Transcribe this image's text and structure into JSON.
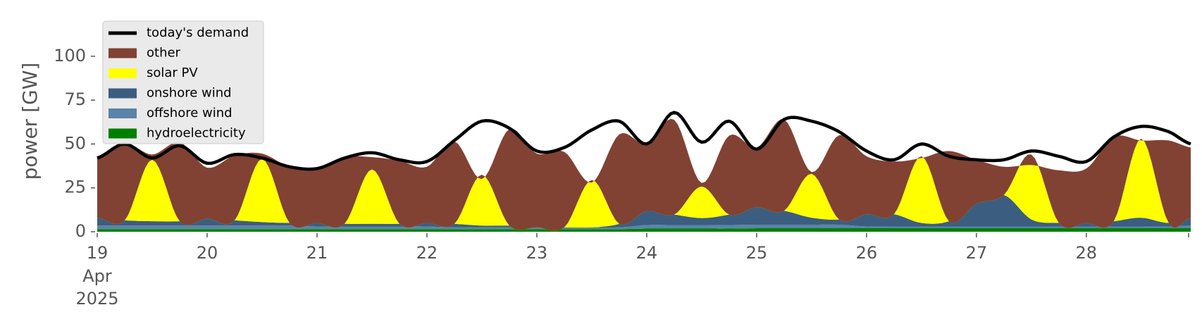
{
  "chart_data": {
    "type": "area",
    "stacked": true,
    "ylabel": "power [GW]",
    "xlabel": "",
    "title": "",
    "ylim": [
      0,
      120
    ],
    "yticks": [
      0,
      25,
      50,
      75,
      100
    ],
    "xlim": [
      0,
      9.95
    ],
    "xticks": [
      {
        "day": 0,
        "label": "19",
        "sub1": "Apr",
        "sub2": "2025"
      },
      {
        "day": 1,
        "label": "20"
      },
      {
        "day": 2,
        "label": "21"
      },
      {
        "day": 3,
        "label": "22"
      },
      {
        "day": 4,
        "label": "23"
      },
      {
        "day": 5,
        "label": "24"
      },
      {
        "day": 6,
        "label": "25"
      },
      {
        "day": 7,
        "label": "26"
      },
      {
        "day": 8,
        "label": "27"
      },
      {
        "day": 9,
        "label": "28"
      }
    ],
    "x_days": [
      0,
      0.25,
      0.5,
      0.75,
      1,
      1.25,
      1.5,
      1.75,
      2,
      2.25,
      2.5,
      2.75,
      3,
      3.25,
      3.5,
      3.75,
      4,
      4.25,
      4.5,
      4.75,
      5,
      5.25,
      5.5,
      5.75,
      6,
      6.25,
      6.5,
      6.75,
      7,
      7.25,
      7.5,
      7.75,
      8,
      8.25,
      8.5,
      8.75,
      9,
      9.25,
      9.5,
      9.75,
      9.95
    ],
    "series": [
      {
        "name": "hydroelectricity",
        "color": "#008000",
        "values": [
          1.5,
          1.5,
          1.5,
          1.5,
          1.5,
          1.5,
          1.5,
          1.5,
          1.5,
          1.5,
          1.5,
          1.5,
          1.5,
          1.5,
          1.5,
          1.5,
          1.5,
          1.5,
          1.5,
          1.5,
          1.8,
          1.8,
          1.8,
          1.8,
          2,
          2,
          2,
          2,
          2,
          2,
          2,
          2,
          2,
          2,
          2,
          2,
          2,
          2,
          2,
          2,
          2
        ]
      },
      {
        "name": "offshore wind",
        "color": "#5b83a8",
        "values": [
          2,
          2,
          2,
          2,
          2,
          2,
          2,
          2,
          1.5,
          1.5,
          1.5,
          1.5,
          1.5,
          1,
          1,
          1,
          1,
          1,
          1,
          1,
          2,
          2,
          2,
          2,
          2,
          2,
          2,
          2,
          1,
          1,
          1,
          1,
          1,
          1,
          1,
          1,
          1,
          1,
          1,
          1,
          1.5
        ]
      },
      {
        "name": "onshore wind",
        "color": "#3b5e80",
        "values": [
          4.5,
          3,
          2.5,
          2.5,
          4,
          3,
          2,
          1.5,
          2,
          1.5,
          1.5,
          1.5,
          2,
          2,
          1,
          1,
          0,
          0,
          0,
          2,
          8,
          6,
          4,
          6,
          10,
          8,
          4,
          3,
          7,
          7,
          2,
          3,
          13,
          18,
          4,
          2,
          2,
          3,
          5,
          2,
          4.5
        ]
      },
      {
        "name": "solar PV",
        "color": "#ffff00",
        "values": [
          0,
          0,
          35,
          0,
          0,
          0,
          36,
          0,
          0,
          0,
          31,
          0,
          0,
          0,
          29,
          0,
          0,
          0,
          27,
          0,
          0,
          0,
          18,
          0,
          0,
          0,
          25,
          0,
          0,
          0,
          38,
          0,
          0,
          0,
          37,
          0,
          0,
          0,
          45,
          0,
          0
        ]
      },
      {
        "name": "other",
        "color": "#814233",
        "values": [
          34,
          44,
          3,
          45,
          29,
          37,
          3,
          32,
          31,
          38,
          7,
          36,
          32,
          47,
          -2.5,
          55,
          42,
          43,
          -1.5,
          51,
          38,
          54,
          2,
          45,
          34,
          52,
          1,
          48,
          33,
          30,
          -1,
          40,
          25,
          16,
          -6,
          30,
          31,
          48,
          -1,
          47,
          40
        ]
      }
    ],
    "demand": {
      "name": "today's demand",
      "color": "#000000",
      "values": [
        42,
        50,
        42,
        49,
        39,
        44,
        42,
        37,
        36,
        42,
        45,
        41,
        40,
        52,
        63,
        59,
        46,
        48,
        58,
        63,
        50,
        68,
        51,
        63,
        47,
        64,
        63,
        57,
        46,
        41,
        50,
        43,
        41,
        41,
        46,
        43,
        40,
        54,
        60,
        57,
        50
      ]
    },
    "legend": {
      "position": "upper-left",
      "entries": [
        {
          "label": "today's demand",
          "color": "#000000",
          "kind": "line"
        },
        {
          "label": "other",
          "color": "#814233",
          "kind": "patch"
        },
        {
          "label": "solar PV",
          "color": "#ffff00",
          "kind": "patch"
        },
        {
          "label": "onshore wind",
          "color": "#3b5e80",
          "kind": "patch"
        },
        {
          "label": "offshore wind",
          "color": "#5b83a8",
          "kind": "patch"
        },
        {
          "label": "hydroelectricity",
          "color": "#008000",
          "kind": "patch"
        }
      ]
    }
  }
}
